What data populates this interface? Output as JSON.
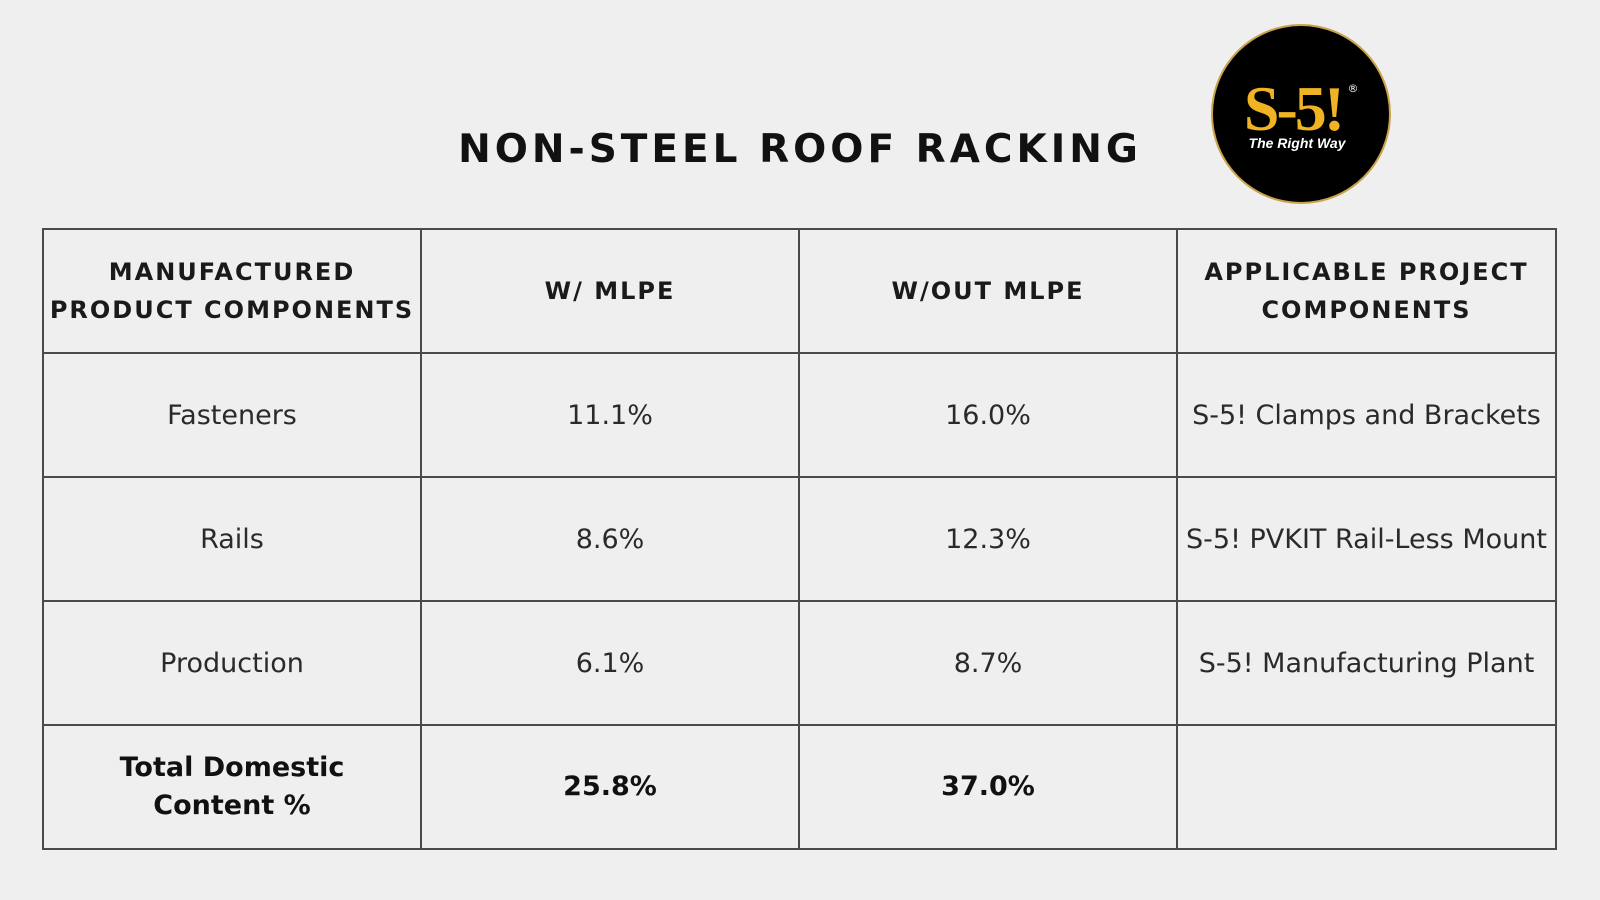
{
  "title": "NON-STEEL ROOF RACKING",
  "logo": {
    "mark": "S-5!",
    "registered": "®",
    "tagline": "The Right Way",
    "colors": {
      "background": "#000000",
      "mark": "#f0b323",
      "tagline": "#ffffff"
    }
  },
  "table": {
    "headers": [
      {
        "line1": "MANUFACTURED",
        "line2": "PRODUCT COMPONENTS"
      },
      {
        "line1": "W/ MLPE",
        "line2": ""
      },
      {
        "line1": "W/OUT MLPE",
        "line2": ""
      },
      {
        "line1": "APPLICABLE PROJECT",
        "line2": "COMPONENTS"
      }
    ],
    "rows": [
      {
        "component": "Fasteners",
        "with_mlpe": "11.1%",
        "without_mlpe": "16.0%",
        "project": "S-5! Clamps and Brackets"
      },
      {
        "component": "Rails",
        "with_mlpe": "8.6%",
        "without_mlpe": "12.3%",
        "project": "S-5! PVKIT Rail-Less Mount"
      },
      {
        "component": "Production",
        "with_mlpe": "6.1%",
        "without_mlpe": "8.7%",
        "project": "S-5! Manufacturing Plant"
      }
    ],
    "total": {
      "label_line1": "Total Domestic",
      "label_line2": "Content %",
      "with_mlpe": "25.8%",
      "without_mlpe": "37.0%",
      "project": ""
    }
  }
}
